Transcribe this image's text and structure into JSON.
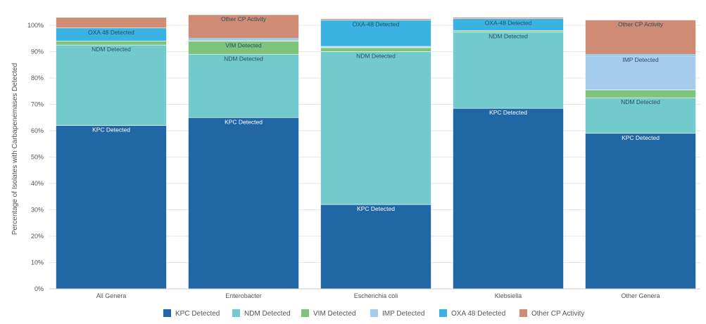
{
  "chart_data": {
    "type": "bar",
    "stacked": true,
    "categories": [
      "All Genera",
      "Enterobacter",
      "Escherichia coli",
      "Klebsiella",
      "Other Genera"
    ],
    "ylabel": "Percentage of Isolates with Carbapenemases Detected",
    "xlabel": "",
    "ylim": [
      0,
      100
    ],
    "yticks": [
      "0%",
      "10%",
      "20%",
      "30%",
      "40%",
      "50%",
      "60%",
      "70%",
      "80%",
      "90%",
      "100%"
    ],
    "grid": true,
    "legend_position": "bottom",
    "series": [
      {
        "name": "KPC Detected",
        "color": "#2166a5",
        "values": [
          62,
          65,
          32,
          68.5,
          59
        ]
      },
      {
        "name": "NDM Detected",
        "color": "#72cacd",
        "values": [
          30.5,
          24,
          58,
          29,
          13.5
        ]
      },
      {
        "name": "VIM Detected",
        "color": "#7ec47a",
        "values": [
          1.5,
          5,
          1.5,
          0.5,
          3
        ]
      },
      {
        "name": "IMP Detected",
        "color": "#a6cdee",
        "values": [
          0,
          0.5,
          0.5,
          0,
          13
        ]
      },
      {
        "name": "OXA 48 Detected",
        "color": "#3ab2e2",
        "values": [
          5,
          0.5,
          10,
          4.5,
          0.5
        ]
      },
      {
        "name": "Other CP Activity",
        "color": "#cf8b73",
        "values": [
          4,
          9,
          0.5,
          0.5,
          13
        ]
      }
    ],
    "data_labels": [
      [
        "KPC Detected",
        "NDM Detected",
        "",
        "",
        "OXA 48 Detected",
        ""
      ],
      [
        "KPC Detected",
        "NDM Detected",
        "VIM Detected",
        "",
        "",
        "Other CP Activity"
      ],
      [
        "KPC Detected",
        "NDM Detected",
        "",
        "",
        "OXA-48 Detected",
        ""
      ],
      [
        "KPC Detected",
        "NDM Detected",
        "",
        "",
        "OXA-48 Detected",
        ""
      ],
      [
        "KPC Detected",
        "NDM Detected",
        "",
        "IMP Detected",
        "",
        "Other CP Activity"
      ]
    ]
  }
}
